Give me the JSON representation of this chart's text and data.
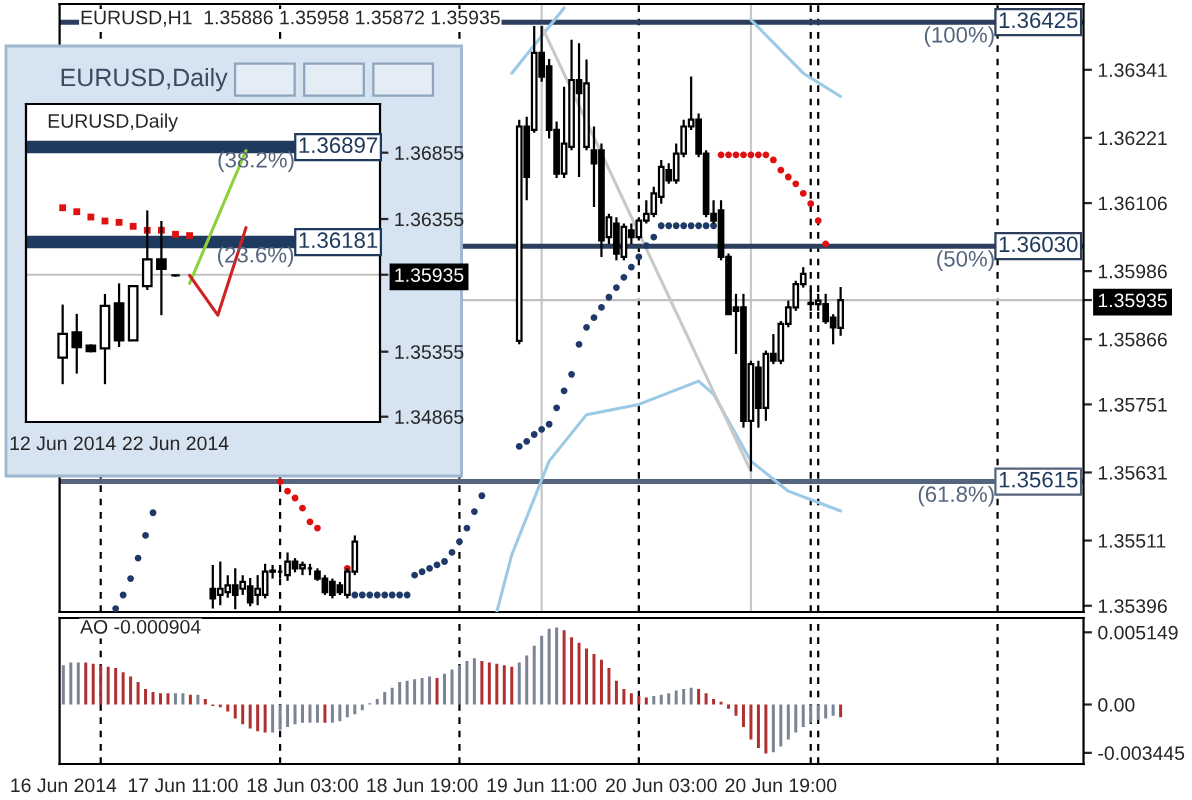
{
  "chart_data": [
    {
      "type": "candlestick",
      "title": "EURUSD,H1  1.35886 1.35958 1.35872 1.35935",
      "x": [
        "2014-06-17T15:00",
        "2014-06-17T16:00",
        "2014-06-17T17:00",
        "2014-06-17T18:00",
        "2014-06-17T19:00",
        "2014-06-17T20:00",
        "2014-06-17T21:00",
        "2014-06-17T22:00",
        "2014-06-17T23:00",
        "2014-06-18T00:00",
        "2014-06-18T01:00",
        "2014-06-18T02:00",
        "2014-06-18T03:00",
        "2014-06-18T04:00",
        "2014-06-18T05:00",
        "2014-06-18T06:00",
        "2014-06-18T07:00",
        "2014-06-18T08:00",
        "2014-06-18T09:00",
        "2014-06-18T10:00",
        "2014-06-19T08:00",
        "2014-06-19T09:00",
        "2014-06-19T10:00",
        "2014-06-19T11:00",
        "2014-06-19T12:00",
        "2014-06-19T13:00",
        "2014-06-19T14:00",
        "2014-06-19T15:00",
        "2014-06-19T16:00",
        "2014-06-19T17:00",
        "2014-06-19T18:00",
        "2014-06-19T19:00",
        "2014-06-19T20:00",
        "2014-06-19T21:00",
        "2014-06-19T22:00",
        "2014-06-19T23:00",
        "2014-06-20T00:00",
        "2014-06-20T01:00",
        "2014-06-20T02:00",
        "2014-06-20T03:00",
        "2014-06-20T04:00",
        "2014-06-20T05:00",
        "2014-06-20T06:00",
        "2014-06-20T07:00",
        "2014-06-20T08:00",
        "2014-06-20T09:00",
        "2014-06-20T10:00",
        "2014-06-20T11:00",
        "2014-06-20T12:00",
        "2014-06-20T13:00",
        "2014-06-20T14:00",
        "2014-06-20T15:00",
        "2014-06-20T16:00",
        "2014-06-20T17:00",
        "2014-06-20T18:00",
        "2014-06-20T19:00",
        "2014-06-20T20:00",
        "2014-06-20T21:00",
        "2014-06-20T22:00",
        "2014-06-20T23:00",
        "2014-06-21T00:00",
        "2014-06-21T01:00",
        "2014-06-21T02:00",
        "2014-06-21T03:00"
      ],
      "ohlc": [
        [
          1.35426,
          1.35468,
          1.35391,
          1.35409
        ],
        [
          1.35415,
          1.35474,
          1.35397,
          1.35426
        ],
        [
          1.3542,
          1.3545,
          1.3541,
          1.35432
        ],
        [
          1.35432,
          1.35462,
          1.3539,
          1.35415
        ],
        [
          1.35426,
          1.3545,
          1.35415,
          1.35438
        ],
        [
          1.3543,
          1.35445,
          1.35395,
          1.35402
        ],
        [
          1.35415,
          1.3545,
          1.35397,
          1.35426
        ],
        [
          1.35415,
          1.3547,
          1.35409,
          1.35456
        ],
        [
          1.35456,
          1.35468,
          1.35444,
          1.35458
        ],
        [
          1.35456,
          1.35468,
          1.35444,
          1.35456
        ],
        [
          1.3545,
          1.3549,
          1.3544,
          1.35474
        ],
        [
          1.35474,
          1.3548,
          1.35455,
          1.35462
        ],
        [
          1.35462,
          1.35474,
          1.3545,
          1.35468
        ],
        [
          1.35462,
          1.3547,
          1.3545,
          1.35462
        ],
        [
          1.35456,
          1.35462,
          1.3544,
          1.35444
        ],
        [
          1.35444,
          1.3545,
          1.35415,
          1.3542
        ],
        [
          1.35438,
          1.35444,
          1.35409,
          1.35415
        ],
        [
          1.35432,
          1.35438,
          1.35415,
          1.3542
        ],
        [
          1.35415,
          1.35462,
          1.35409,
          1.35456
        ],
        [
          1.35456,
          1.3552,
          1.3545,
          1.35509
        ],
        [
          1.35863,
          1.36253,
          1.35857,
          1.36241
        ],
        [
          1.36241,
          1.36258,
          1.36111,
          1.36152
        ],
        [
          1.36235,
          1.36418,
          1.3623,
          1.36371
        ],
        [
          1.36371,
          1.36418,
          1.3632,
          1.36329
        ],
        [
          1.36347,
          1.3636,
          1.3622,
          1.36235
        ],
        [
          1.36235,
          1.3625,
          1.3615,
          1.36158
        ],
        [
          1.36158,
          1.36311,
          1.3615,
          1.36211
        ],
        [
          1.36205,
          1.36394,
          1.36199,
          1.36323
        ],
        [
          1.36323,
          1.36388,
          1.36152,
          1.363
        ],
        [
          1.36205,
          1.36359,
          1.36199,
          1.36317
        ],
        [
          1.36199,
          1.36241,
          1.36099,
          1.36176
        ],
        [
          1.36199,
          1.36211,
          1.36011,
          1.3604
        ],
        [
          1.36046,
          1.36087,
          1.36034,
          1.36081
        ],
        [
          1.3607,
          1.36081,
          1.36005,
          1.36017
        ],
        [
          1.36011,
          1.3607,
          1.36005,
          1.36064
        ],
        [
          1.36058,
          1.3607,
          1.36034,
          1.36046
        ],
        [
          1.36046,
          1.36081,
          1.3604,
          1.36075
        ],
        [
          1.36075,
          1.36111,
          1.3607,
          1.36087
        ],
        [
          1.36087,
          1.36135,
          1.36081,
          1.36123
        ],
        [
          1.36117,
          1.36182,
          1.36105,
          1.3617
        ],
        [
          1.36164,
          1.36176,
          1.3614,
          1.36146
        ],
        [
          1.36146,
          1.36211,
          1.3614,
          1.36193
        ],
        [
          1.36193,
          1.36253,
          1.36187,
          1.36241
        ],
        [
          1.36241,
          1.36329,
          1.36235,
          1.36253
        ],
        [
          1.36253,
          1.36264,
          1.36187,
          1.36193
        ],
        [
          1.36193,
          1.36199,
          1.36081,
          1.36087
        ],
        [
          1.36087,
          1.36111,
          1.3607,
          1.36075
        ],
        [
          1.36093,
          1.36111,
          1.36005,
          1.36011
        ],
        [
          1.36011,
          1.36017,
          1.3591,
          1.3591
        ],
        [
          1.35922,
          1.35946,
          1.3584,
          1.35916
        ],
        [
          1.35922,
          1.35946,
          1.3571,
          1.35722
        ],
        [
          1.35722,
          1.35828,
          1.35633,
          1.35822
        ],
        [
          1.35816,
          1.35828,
          1.3571,
          1.35745
        ],
        [
          1.35745,
          1.35846,
          1.35722,
          1.3584
        ],
        [
          1.3584,
          1.35875,
          1.35822,
          1.35828
        ],
        [
          1.35828,
          1.35898,
          1.35822,
          1.35893
        ],
        [
          1.35893,
          1.35934,
          1.35887,
          1.35922
        ],
        [
          1.35922,
          1.35969,
          1.35916,
          1.35963
        ],
        [
          1.35963,
          1.35993,
          1.35957,
          1.35981
        ],
        [
          1.35928,
          1.35952,
          1.35916,
          1.3593
        ],
        [
          1.35928,
          1.35946,
          1.35916,
          1.35934
        ],
        [
          1.35928,
          1.35946,
          1.35893,
          1.35898
        ],
        [
          1.35904,
          1.3591,
          1.35857,
          1.35887
        ],
        [
          1.35886,
          1.35958,
          1.35872,
          1.35935
        ]
      ],
      "series": [
        {
          "type": "scatter",
          "marker": "circle",
          "color": "#1f3a68",
          "x": [
            "2014-06-17T02:00",
            "2014-06-17T03:00",
            "2014-06-17T04:00",
            "2014-06-17T05:00",
            "2014-06-17T06:00",
            "2014-06-17T07:00",
            "2014-06-18T10:00",
            "2014-06-18T11:00",
            "2014-06-18T12:00",
            "2014-06-18T13:00",
            "2014-06-18T14:00",
            "2014-06-18T15:00",
            "2014-06-18T16:00",
            "2014-06-18T17:00",
            "2014-06-18T18:00",
            "2014-06-18T19:00",
            "2014-06-18T20:00",
            "2014-06-18T21:00",
            "2014-06-18T22:00",
            "2014-06-18T23:00",
            "2014-06-19T00:00",
            "2014-06-19T01:00",
            "2014-06-19T02:00",
            "2014-06-19T03:00",
            "2014-06-19T08:00",
            "2014-06-19T09:00",
            "2014-06-19T10:00",
            "2014-06-19T11:00",
            "2014-06-19T12:00",
            "2014-06-19T13:00",
            "2014-06-19T14:00",
            "2014-06-19T15:00",
            "2014-06-19T16:00",
            "2014-06-19T17:00",
            "2014-06-19T18:00",
            "2014-06-19T19:00",
            "2014-06-19T20:00",
            "2014-06-19T21:00",
            "2014-06-19T22:00",
            "2014-06-19T23:00",
            "2014-06-20T00:00",
            "2014-06-20T01:00",
            "2014-06-20T02:00",
            "2014-06-20T03:00",
            "2014-06-20T04:00",
            "2014-06-20T05:00",
            "2014-06-20T06:00",
            "2014-06-20T07:00",
            "2014-06-20T08:00",
            "2014-06-20T09:00",
            "2014-06-20T10:00"
          ],
          "values": [
            1.35391,
            1.35415,
            1.35444,
            1.3548,
            1.3552,
            1.3556,
            1.35415,
            1.35415,
            1.35415,
            1.35415,
            1.35415,
            1.35415,
            1.35415,
            1.35415,
            1.3545,
            1.35456,
            1.35462,
            1.35468,
            1.35474,
            1.3549,
            1.35509,
            1.35533,
            1.35562,
            1.3559,
            1.35677,
            1.35686,
            1.35698,
            1.35707,
            1.35716,
            1.35745,
            1.35775,
            1.35804,
            1.35857,
            1.35887,
            1.35904,
            1.35922,
            1.3594,
            1.35957,
            1.35975,
            1.35993,
            1.36011,
            1.36031,
            1.36046,
            1.36066,
            1.36066,
            1.36066,
            1.36066,
            1.36066,
            1.36066,
            1.36066,
            1.36066
          ]
        },
        {
          "type": "scatter",
          "marker": "circle",
          "color": "#e01010",
          "x": [
            "2014-06-18T00:00",
            "2014-06-18T01:00",
            "2014-06-18T02:00",
            "2014-06-18T03:00",
            "2014-06-18T04:00",
            "2014-06-18T05:00",
            "2014-06-18T09:00",
            "2014-06-20T11:00",
            "2014-06-20T12:00",
            "2014-06-20T13:00",
            "2014-06-20T14:00",
            "2014-06-20T15:00",
            "2014-06-20T16:00",
            "2014-06-20T17:00",
            "2014-06-20T18:00",
            "2014-06-20T19:00",
            "2014-06-20T20:00",
            "2014-06-20T21:00",
            "2014-06-20T22:00",
            "2014-06-20T23:00",
            "2014-06-21T00:00",
            "2014-06-21T01:00"
          ],
          "values": [
            1.35615,
            1.35598,
            1.35586,
            1.35568,
            1.35544,
            1.35533,
            1.35462,
            1.36191,
            1.36191,
            1.36191,
            1.36191,
            1.36191,
            1.36191,
            1.36191,
            1.36182,
            1.36164,
            1.36152,
            1.3614,
            1.36123,
            1.36105,
            1.36075,
            1.36034
          ]
        },
        {
          "type": "line",
          "color": "#9cc9e6",
          "x": [
            "2014-06-19T05:00",
            "2014-06-19T07:00",
            "2014-06-19T12:00",
            "2014-06-19T17:00",
            "2014-06-20T00:00",
            "2014-06-20T08:00",
            "2014-06-20T10:00",
            "2014-06-20T15:00",
            "2014-06-20T20:00",
            "2014-06-21T03:00"
          ],
          "values": [
            1.35385,
            1.35486,
            1.35651,
            1.35733,
            1.35751,
            1.35792,
            1.35769,
            1.35651,
            1.35598,
            1.35563
          ]
        },
        {
          "type": "line",
          "color": "#9cc9e6",
          "x": [
            "2014-06-19T07:00",
            "2014-06-19T14:00"
          ],
          "values": [
            1.36335,
            1.3645
          ]
        },
        {
          "type": "line",
          "color": "#9cc9e6",
          "x": [
            "2014-06-20T15:00",
            "2014-06-20T22:00",
            "2014-06-21T03:00"
          ],
          "values": [
            1.36429,
            1.36335,
            1.36294
          ]
        },
        {
          "type": "line",
          "color": "#c8c8c8",
          "x": [
            "2014-06-19T11:00",
            "2014-06-20T15:00"
          ],
          "values": [
            1.36418,
            1.35633
          ]
        }
      ],
      "xlim": [
        "2014-06-16T18:30",
        "2014-06-22T11:30"
      ],
      "ylim": [
        1.35385,
        1.36457
      ],
      "yticks": [
        1.36341,
        1.36221,
        1.36106,
        1.35986,
        1.35935,
        1.35866,
        1.35751,
        1.35631,
        1.35511,
        1.35396
      ],
      "ref_lines": [
        {
          "axis": "y",
          "value": 1.36425,
          "label": "1.36425",
          "color": "#2b3f5c"
        },
        {
          "axis": "y",
          "value": 1.3603,
          "label": "1.36030",
          "color": "#2b3f5c"
        },
        {
          "axis": "y",
          "value": 1.35615,
          "label": "1.35615",
          "color": "#55657e"
        },
        {
          "axis": "y",
          "value": 1.35935,
          "color": "#c0c0c0"
        },
        {
          "axis": "x",
          "value": "2014-06-17T00:00",
          "color": "#000000",
          "line_style": "dashed"
        },
        {
          "axis": "x",
          "value": "2014-06-18T00:00",
          "color": "#000000",
          "line_style": "dashed"
        },
        {
          "axis": "x",
          "value": "2014-06-19T00:00",
          "color": "#000000",
          "line_style": "dashed"
        },
        {
          "axis": "x",
          "value": "2014-06-20T00:00",
          "color": "#000000",
          "line_style": "dashed"
        },
        {
          "axis": "x",
          "value": "2014-06-20T23:00",
          "color": "#000000",
          "line_style": "dashed"
        },
        {
          "axis": "x",
          "value": "2014-06-21T00:00",
          "color": "#000000",
          "line_style": "dashed"
        },
        {
          "axis": "x",
          "value": "2014-06-22T00:00",
          "color": "#000000",
          "line_style": "dashed"
        },
        {
          "axis": "x",
          "value": "2014-06-19T11:00",
          "color": "#c8c8c8",
          "line_style": "solid"
        },
        {
          "axis": "x",
          "value": "2014-06-20T15:00",
          "color": "#c8c8c8",
          "line_style": "solid"
        }
      ],
      "annotations": [
        {
          "text": "(100%)",
          "y": 1.36425
        },
        {
          "text": "(50%)",
          "y": 1.3603
        },
        {
          "text": "(61.8%)",
          "y": 1.35615
        }
      ],
      "tick_labels": "y"
    },
    {
      "type": "bar",
      "title": "AO -0.000904",
      "x": [
        "2014-06-16T19:00",
        "2014-06-16T20:00",
        "2014-06-16T21:00",
        "2014-06-16T22:00",
        "2014-06-16T23:00",
        "2014-06-17T00:00",
        "2014-06-17T01:00",
        "2014-06-17T02:00",
        "2014-06-17T03:00",
        "2014-06-17T04:00",
        "2014-06-17T05:00",
        "2014-06-17T06:00",
        "2014-06-17T07:00",
        "2014-06-17T08:00",
        "2014-06-17T09:00",
        "2014-06-17T10:00",
        "2014-06-17T11:00",
        "2014-06-17T12:00",
        "2014-06-17T13:00",
        "2014-06-17T14:00",
        "2014-06-17T15:00",
        "2014-06-17T16:00",
        "2014-06-17T17:00",
        "2014-06-17T18:00",
        "2014-06-17T19:00",
        "2014-06-17T20:00",
        "2014-06-17T21:00",
        "2014-06-17T22:00",
        "2014-06-17T23:00",
        "2014-06-18T00:00",
        "2014-06-18T01:00",
        "2014-06-18T02:00",
        "2014-06-18T03:00",
        "2014-06-18T04:00",
        "2014-06-18T05:00",
        "2014-06-18T06:00",
        "2014-06-18T07:00",
        "2014-06-18T08:00",
        "2014-06-18T09:00",
        "2014-06-18T10:00",
        "2014-06-18T11:00",
        "2014-06-18T12:00",
        "2014-06-18T13:00",
        "2014-06-18T14:00",
        "2014-06-18T15:00",
        "2014-06-18T16:00",
        "2014-06-18T17:00",
        "2014-06-18T18:00",
        "2014-06-18T19:00",
        "2014-06-18T20:00",
        "2014-06-18T21:00",
        "2014-06-18T22:00",
        "2014-06-18T23:00",
        "2014-06-19T00:00",
        "2014-06-19T01:00",
        "2014-06-19T02:00",
        "2014-06-19T03:00",
        "2014-06-19T04:00",
        "2014-06-19T05:00",
        "2014-06-19T06:00",
        "2014-06-19T07:00",
        "2014-06-19T08:00",
        "2014-06-19T09:00",
        "2014-06-19T10:00",
        "2014-06-19T11:00",
        "2014-06-19T12:00",
        "2014-06-19T13:00",
        "2014-06-19T14:00",
        "2014-06-19T15:00",
        "2014-06-19T16:00",
        "2014-06-19T17:00",
        "2014-06-19T18:00",
        "2014-06-19T19:00",
        "2014-06-19T20:00",
        "2014-06-19T21:00",
        "2014-06-19T22:00",
        "2014-06-19T23:00",
        "2014-06-20T00:00",
        "2014-06-20T01:00",
        "2014-06-20T02:00",
        "2014-06-20T03:00",
        "2014-06-20T04:00",
        "2014-06-20T05:00",
        "2014-06-20T06:00",
        "2014-06-20T07:00",
        "2014-06-20T08:00",
        "2014-06-20T09:00",
        "2014-06-20T10:00",
        "2014-06-20T11:00",
        "2014-06-20T12:00",
        "2014-06-20T13:00",
        "2014-06-20T14:00",
        "2014-06-20T15:00",
        "2014-06-20T16:00",
        "2014-06-20T17:00",
        "2014-06-20T18:00",
        "2014-06-20T19:00",
        "2014-06-20T20:00",
        "2014-06-20T21:00",
        "2014-06-20T22:00",
        "2014-06-20T23:00",
        "2014-06-21T00:00",
        "2014-06-21T01:00",
        "2014-06-21T02:00",
        "2014-06-21T03:00"
      ],
      "values": [
        0.0028,
        0.003,
        0.003,
        0.003,
        0.0029,
        0.0028,
        0.0027,
        0.0026,
        0.0023,
        0.002,
        0.0016,
        0.0011,
        0.0009,
        0.0008,
        0.0008,
        0.0008,
        0.0008,
        0.0007,
        0.0007,
        0.0004,
        -0.0001,
        -0.0002,
        -0.0005,
        -0.001,
        -0.0014,
        -0.0017,
        -0.0019,
        -0.002,
        -0.002,
        -0.0018,
        -0.0016,
        -0.0014,
        -0.0013,
        -0.0013,
        -0.0013,
        -0.0013,
        -0.0013,
        -0.0012,
        -0.0009,
        -0.0007,
        -0.0004,
        0.0001,
        0.0004,
        0.0009,
        0.0012,
        0.0016,
        0.0017,
        0.0018,
        0.0019,
        0.002,
        0.0019,
        0.0022,
        0.0025,
        0.0028,
        0.0031,
        0.0033,
        0.0031,
        0.003,
        0.0029,
        0.0028,
        0.0027,
        0.003,
        0.0035,
        0.0042,
        0.0049,
        0.0054,
        0.0055,
        0.0053,
        0.0048,
        0.0044,
        0.004,
        0.0036,
        0.0032,
        0.0026,
        0.0017,
        0.0011,
        0.0008,
        0.0006,
        0.0005,
        0.0006,
        0.0007,
        0.0008,
        0.001,
        0.0011,
        0.0012,
        0.0011,
        0.0008,
        0.0004,
        0.0002,
        -0.0003,
        -0.0008,
        -0.0016,
        -0.0025,
        -0.0031,
        -0.0035,
        -0.0034,
        -0.003,
        -0.0025,
        -0.002,
        -0.0016,
        -0.0013,
        -0.0011,
        -0.001,
        -0.0008,
        -0.000904
      ],
      "colors": [
        "#7b8494",
        "#7b8494",
        "#7b8494",
        "#b03030",
        "#b03030",
        "#b03030",
        "#b03030",
        "#b03030",
        "#b03030",
        "#b03030",
        "#b03030",
        "#b03030",
        "#b03030",
        "#b03030",
        "#b03030",
        "#7b8494",
        "#7b8494",
        "#b03030",
        "#7b8494",
        "#b03030",
        "#b03030",
        "#b03030",
        "#b03030",
        "#b03030",
        "#b03030",
        "#b03030",
        "#b03030",
        "#b03030",
        "#7b8494",
        "#7b8494",
        "#7b8494",
        "#7b8494",
        "#7b8494",
        "#7b8494",
        "#7b8494",
        "#b03030",
        "#7b8494",
        "#7b8494",
        "#7b8494",
        "#7b8494",
        "#7b8494",
        "#7b8494",
        "#7b8494",
        "#7b8494",
        "#7b8494",
        "#7b8494",
        "#7b8494",
        "#7b8494",
        "#7b8494",
        "#7b8494",
        "#b03030",
        "#7b8494",
        "#7b8494",
        "#7b8494",
        "#7b8494",
        "#7b8494",
        "#b03030",
        "#b03030",
        "#b03030",
        "#b03030",
        "#b03030",
        "#7b8494",
        "#7b8494",
        "#7b8494",
        "#7b8494",
        "#7b8494",
        "#7b8494",
        "#b03030",
        "#b03030",
        "#b03030",
        "#b03030",
        "#b03030",
        "#b03030",
        "#b03030",
        "#b03030",
        "#b03030",
        "#b03030",
        "#b03030",
        "#b03030",
        "#7b8494",
        "#7b8494",
        "#7b8494",
        "#7b8494",
        "#7b8494",
        "#7b8494",
        "#b03030",
        "#b03030",
        "#b03030",
        "#b03030",
        "#b03030",
        "#b03030",
        "#b03030",
        "#b03030",
        "#b03030",
        "#b03030",
        "#7b8494",
        "#7b8494",
        "#7b8494",
        "#7b8494",
        "#7b8494",
        "#7b8494",
        "#7b8494",
        "#7b8494",
        "#7b8494",
        "#b03030"
      ],
      "xlim": [
        "2014-06-16T18:30",
        "2014-06-22T11:30"
      ],
      "xticks": [
        {
          "value": "2014-06-16T19:00",
          "label": "16 Jun 2014"
        },
        {
          "value": "2014-06-17T11:00",
          "label": "17 Jun 11:00"
        },
        {
          "value": "2014-06-18T03:00",
          "label": "18 Jun 03:00"
        },
        {
          "value": "2014-06-18T19:00",
          "label": "18 Jun 19:00"
        },
        {
          "value": "2014-06-19T11:00",
          "label": "19 Jun 11:00"
        },
        {
          "value": "2014-06-20T03:00",
          "label": "20 Jun 03:00"
        },
        {
          "value": "2014-06-20T19:00",
          "label": "20 Jun 19:00"
        }
      ],
      "ylim": [
        -0.00424,
        0.00617
      ],
      "yticks": [
        0.005149,
        {
          "value": 0,
          "label": "0.00"
        },
        -0.003445
      ],
      "ref_lines": [
        {
          "axis": "x",
          "value": "2014-06-17T00:00",
          "color": "#000000",
          "line_style": "dashed"
        },
        {
          "axis": "x",
          "value": "2014-06-18T00:00",
          "color": "#000000",
          "line_style": "dashed"
        },
        {
          "axis": "x",
          "value": "2014-06-19T00:00",
          "color": "#000000",
          "line_style": "dashed"
        },
        {
          "axis": "x",
          "value": "2014-06-20T00:00",
          "color": "#000000",
          "line_style": "dashed"
        },
        {
          "axis": "x",
          "value": "2014-06-20T23:00",
          "color": "#000000",
          "line_style": "dashed"
        },
        {
          "axis": "x",
          "value": "2014-06-21T00:00",
          "color": "#000000",
          "line_style": "dashed"
        },
        {
          "axis": "x",
          "value": "2014-06-22T00:00",
          "color": "#000000",
          "line_style": "dashed"
        }
      ]
    },
    {
      "type": "candlestick",
      "title": "EURUSD,Daily",
      "subtitle": "EURUSD,Daily",
      "categories": [
        "12 Jun 2014",
        null,
        null,
        null,
        null,
        null,
        null,
        null,
        "22 Jun 2014",
        null,
        null,
        null,
        null,
        null,
        null,
        null,
        null,
        null,
        null,
        null,
        null,
        null,
        null
      ],
      "ohlc": [
        [
          1.3531,
          1.3571,
          1.3511,
          1.3549
        ],
        [
          1.355,
          1.3564,
          1.3519,
          1.3539
        ],
        [
          1.354,
          1.3541,
          1.3535,
          1.3536
        ],
        [
          1.3538,
          1.3579,
          1.3511,
          1.357
        ],
        [
          1.3572,
          1.3587,
          1.3539,
          1.3544
        ],
        [
          1.3544,
          1.3585,
          1.3544,
          1.3585
        ],
        [
          1.3585,
          1.3642,
          1.3582,
          1.3605
        ],
        [
          1.3605,
          1.3634,
          1.3563,
          1.3598
        ],
        [
          1.3593,
          1.35935,
          1.3592,
          1.3593
        ],
        null,
        null,
        null,
        null,
        null,
        null,
        null,
        null,
        null,
        null,
        null,
        null,
        null,
        null
      ],
      "series": [
        {
          "type": "scatter",
          "marker": "square",
          "color": "#e01010",
          "values": [
            1.3644,
            1.3641,
            1.3637,
            1.3634,
            1.3633,
            1.363,
            1.3627,
            1.3627,
            1.3624,
            1.3623,
            null,
            null,
            null,
            null,
            null,
            null,
            null,
            null,
            null,
            null,
            null,
            null,
            null
          ]
        },
        {
          "type": "line",
          "color": "#8fd13a",
          "values": [
            null,
            null,
            null,
            null,
            null,
            null,
            null,
            null,
            null,
            1.3587,
            null,
            null,
            null,
            1.3687,
            null,
            null,
            null,
            null,
            null,
            null,
            null,
            null,
            null
          ]
        },
        {
          "type": "line",
          "color": "#d02020",
          "values": [
            null,
            null,
            null,
            null,
            null,
            null,
            null,
            null,
            null,
            1.3593,
            null,
            1.3563,
            null,
            1.3629,
            null,
            null,
            null,
            null,
            null,
            null,
            null,
            null,
            null
          ]
        }
      ],
      "ylim": [
        1.34825,
        1.37222
      ],
      "yticks": [
        1.36855,
        1.36355,
        1.35935,
        1.35355,
        1.34865
      ],
      "ref_lines": [
        {
          "axis": "y",
          "value": 1.36897,
          "label": "1.36897",
          "color": "#1f3a5f"
        },
        {
          "axis": "y",
          "value": 1.36181,
          "label": "1.36181",
          "color": "#1f3a5f"
        },
        {
          "axis": "y",
          "value": 1.35935,
          "color": "#c0c0c0"
        }
      ],
      "annotations": [
        {
          "text": "(38.2%)",
          "y": 1.36897
        },
        {
          "text": "(23.6%)",
          "y": 1.36181
        }
      ]
    }
  ]
}
